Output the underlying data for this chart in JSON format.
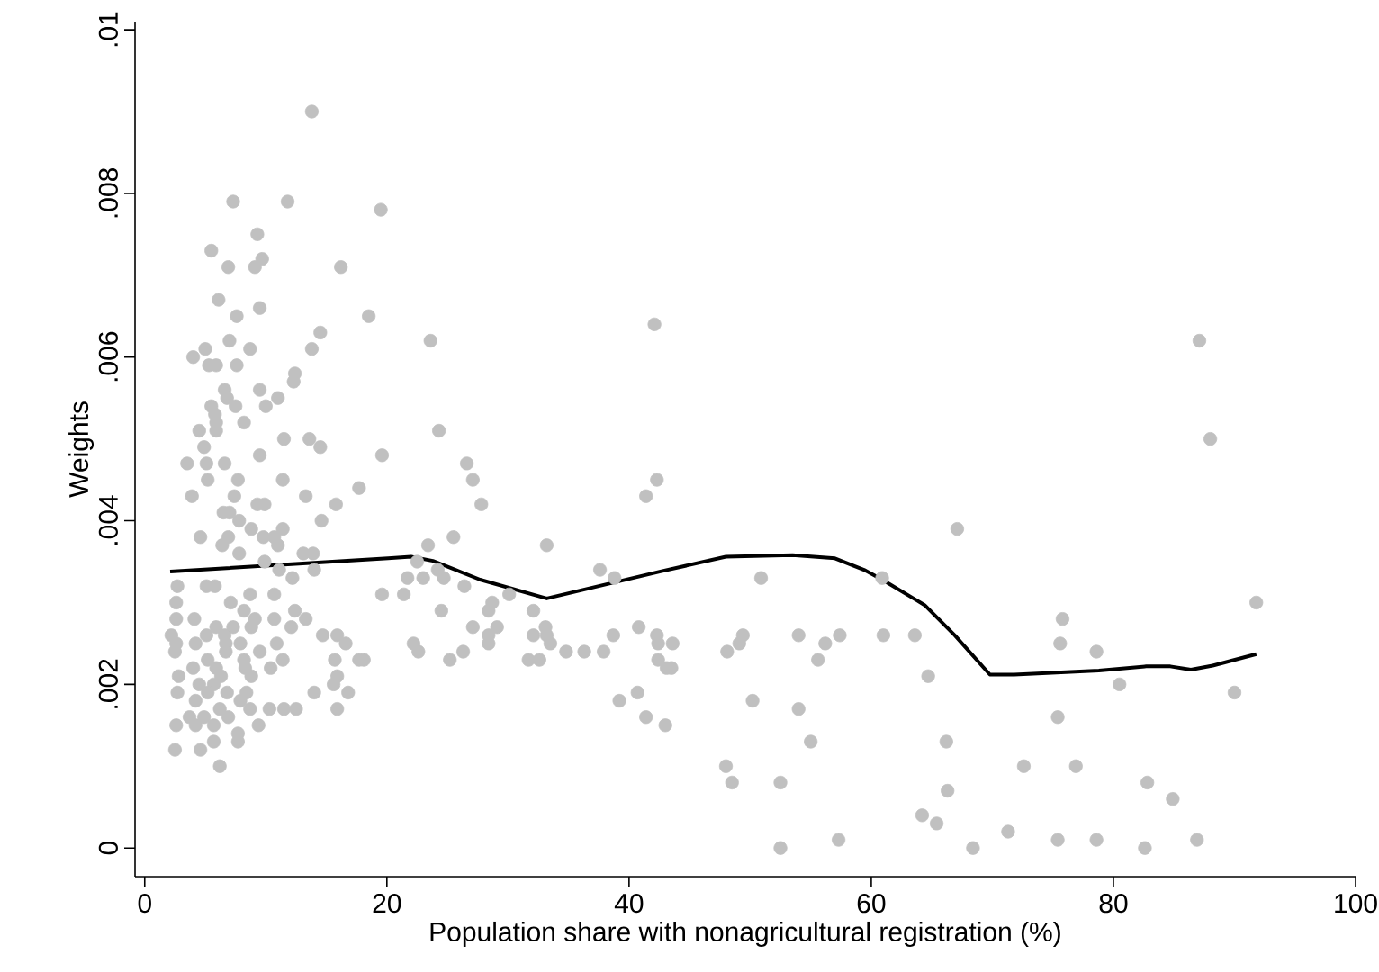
{
  "chart_data": {
    "type": "scatter",
    "xlabel": "Population share with nonagricultural registration (%)",
    "ylabel": "Weights",
    "xlim": [
      -0.8,
      100
    ],
    "ylim": [
      -0.00035,
      0.0101
    ],
    "xticks": [
      0,
      20,
      40,
      60,
      80,
      100
    ],
    "yticks": [
      {
        "value": 0,
        "label": "0"
      },
      {
        "value": 0.002,
        "label": ".002"
      },
      {
        "value": 0.004,
        "label": ".004"
      },
      {
        "value": 0.006,
        "label": ".006"
      },
      {
        "value": 0.008,
        "label": ".008"
      },
      {
        "value": 0.01,
        "label": ".01"
      }
    ],
    "grid": false,
    "series": [
      {
        "color": "#c0c0c0",
        "marker": "circle",
        "x": [
          13.8,
          7.3,
          11.8,
          19.5,
          9.3,
          5.5,
          6.9,
          9.7,
          9.1,
          16.2,
          6.1,
          7.6,
          9.5,
          18.5,
          5.0,
          4.0,
          5.3,
          5.9,
          7.0,
          8.7,
          7.6,
          14.5,
          13.8,
          12.4,
          12.3,
          6.6,
          6.8,
          9.5,
          11.0,
          10.0,
          5.5,
          5.8,
          7.5,
          5.9,
          4.5,
          5.9,
          8.2,
          11.5,
          4.9,
          13.6,
          14.5,
          9.5,
          3.5,
          5.1,
          6.6,
          19.6,
          5.2,
          7.7,
          11.4,
          3.9,
          7.4,
          13.3,
          17.7,
          9.9,
          9.3,
          6.5,
          7.0,
          15.8,
          14.6,
          7.8,
          8.8,
          11.4,
          4.6,
          6.9,
          9.8,
          10.7,
          11.0,
          6.4,
          7.8,
          13.1,
          13.9,
          9.9,
          11.1,
          12.2,
          14.0,
          19.6,
          2.7,
          5.1,
          5.8,
          7.1,
          8.7,
          10.7,
          2.6,
          8.2,
          12.4,
          2.6,
          4.1,
          5.9,
          7.3,
          9.1,
          10.7,
          13.3,
          2.2,
          5.1,
          6.6,
          8.8,
          12.1,
          14.7,
          15.9,
          2.6,
          4.2,
          6.7,
          7.9,
          10.9,
          16.6,
          2.5,
          5.2,
          6.7,
          8.2,
          9.5,
          11.4,
          15.7,
          4.0,
          5.9,
          8.3,
          17.7,
          18.1,
          2.8,
          6.3,
          10.4,
          15.9,
          4.5,
          5.7,
          8.8,
          15.6,
          2.7,
          5.2,
          6.8,
          8.4,
          14.0,
          16.8,
          4.2,
          6.2,
          7.9,
          10.3,
          11.5,
          12.5,
          15.9,
          3.7,
          4.9,
          6.9,
          8.7,
          2.6,
          4.2,
          5.7,
          7.7,
          9.4,
          4.6,
          5.7,
          7.7,
          2.5,
          6.2,
          23.6,
          42.1,
          24.3,
          26.6,
          27.1,
          27.8,
          42.3,
          41.4,
          25.5,
          23.4,
          33.2,
          22.5,
          24.2,
          37.6,
          38.8,
          50.9,
          21.7,
          23.0,
          24.7,
          26.4,
          21.4,
          30.1,
          28.7,
          28.4,
          24.5,
          32.1,
          27.1,
          29.1,
          28.4,
          28.4,
          33.1,
          32.1,
          33.2,
          33.5,
          22.2,
          22.6,
          26.3,
          25.2,
          31.7,
          32.6,
          34.8,
          36.3,
          37.9,
          38.7,
          40.8,
          42.3,
          43.6,
          42.4,
          42.4,
          43.1,
          43.5,
          48.1,
          49.4,
          49.1,
          54.0,
          55.6,
          56.2,
          57.4,
          39.2,
          40.7,
          41.4,
          43.0,
          50.2,
          54.0,
          55.0,
          48.0,
          48.5,
          52.5,
          52.5,
          57.3,
          87.1,
          88.0,
          67.1,
          91.8,
          60.9,
          61.0,
          63.6,
          75.8,
          75.6,
          78.6,
          80.5,
          90.0,
          64.7,
          75.4,
          66.2,
          72.6,
          76.9,
          66.3,
          82.8,
          84.9,
          64.2,
          65.4,
          68.4,
          71.3,
          75.4,
          78.6,
          82.6,
          86.9
        ],
        "values": [
          0.009,
          0.0079,
          0.0079,
          0.0078,
          0.0075,
          0.0073,
          0.0071,
          0.0072,
          0.0071,
          0.0071,
          0.0067,
          0.0065,
          0.0066,
          0.0065,
          0.0061,
          0.006,
          0.0059,
          0.0059,
          0.0062,
          0.0061,
          0.0059,
          0.0063,
          0.0061,
          0.0058,
          0.0057,
          0.0056,
          0.0055,
          0.0056,
          0.0055,
          0.0054,
          0.0054,
          0.0053,
          0.0054,
          0.0052,
          0.0051,
          0.0051,
          0.0052,
          0.005,
          0.0049,
          0.005,
          0.0049,
          0.0048,
          0.0047,
          0.0047,
          0.0047,
          0.0048,
          0.0045,
          0.0045,
          0.0045,
          0.0043,
          0.0043,
          0.0043,
          0.0044,
          0.0042,
          0.0042,
          0.0041,
          0.0041,
          0.0042,
          0.004,
          0.004,
          0.0039,
          0.0039,
          0.0038,
          0.0038,
          0.0038,
          0.0038,
          0.0037,
          0.0037,
          0.0036,
          0.0036,
          0.0036,
          0.0035,
          0.0034,
          0.0033,
          0.0034,
          0.0031,
          0.0032,
          0.0032,
          0.0032,
          0.003,
          0.0031,
          0.0031,
          0.003,
          0.0029,
          0.0029,
          0.0028,
          0.0028,
          0.0027,
          0.0027,
          0.0028,
          0.0028,
          0.0028,
          0.0026,
          0.0026,
          0.0026,
          0.0027,
          0.0027,
          0.0026,
          0.0026,
          0.0025,
          0.0025,
          0.0025,
          0.0025,
          0.0025,
          0.0025,
          0.0024,
          0.0023,
          0.0024,
          0.0023,
          0.0024,
          0.0023,
          0.0023,
          0.0022,
          0.0022,
          0.0022,
          0.0023,
          0.0023,
          0.0021,
          0.0021,
          0.0022,
          0.0021,
          0.002,
          0.002,
          0.0021,
          0.002,
          0.0019,
          0.0019,
          0.0019,
          0.0019,
          0.0019,
          0.0019,
          0.0018,
          0.0017,
          0.0018,
          0.0017,
          0.0017,
          0.0017,
          0.0017,
          0.0016,
          0.0016,
          0.0016,
          0.0017,
          0.0015,
          0.0015,
          0.0015,
          0.0014,
          0.0015,
          0.0012,
          0.0013,
          0.0013,
          0.0012,
          0.001,
          0.0062,
          0.0064,
          0.0051,
          0.0047,
          0.0045,
          0.0042,
          0.0045,
          0.0043,
          0.0038,
          0.0037,
          0.0037,
          0.0035,
          0.0034,
          0.0034,
          0.0033,
          0.0033,
          0.0033,
          0.0033,
          0.0033,
          0.0032,
          0.0031,
          0.0031,
          0.003,
          0.0029,
          0.0029,
          0.0029,
          0.0027,
          0.0027,
          0.0026,
          0.0025,
          0.0027,
          0.0026,
          0.0026,
          0.0025,
          0.0025,
          0.0024,
          0.0024,
          0.0023,
          0.0023,
          0.0023,
          0.0024,
          0.0024,
          0.0024,
          0.0026,
          0.0027,
          0.0026,
          0.0025,
          0.0025,
          0.0023,
          0.0022,
          0.0022,
          0.0024,
          0.0026,
          0.0025,
          0.0026,
          0.0023,
          0.0025,
          0.0026,
          0.0018,
          0.0019,
          0.0016,
          0.0015,
          0.0018,
          0.0017,
          0.0013,
          0.001,
          0.0008,
          0.0008,
          0.0,
          0.0001,
          0.0062,
          0.005,
          0.0039,
          0.003,
          0.0033,
          0.0026,
          0.0026,
          0.0028,
          0.0025,
          0.0024,
          0.002,
          0.0019,
          0.0021,
          0.0016,
          0.0013,
          0.001,
          0.001,
          0.0007,
          0.0008,
          0.0006,
          0.0004,
          0.0003,
          0.0,
          0.0002,
          0.0001,
          0.0001,
          0.0,
          0.0001
        ]
      },
      {
        "type": "line",
        "color": "#000000",
        "marker": "none",
        "line_style": "solid",
        "x": [
          2.1,
          20.1,
          22.0,
          23.8,
          27.7,
          33.2,
          42.6,
          48.0,
          53.5,
          57.0,
          59.4,
          60.9,
          64.4,
          66.9,
          69.8,
          71.8,
          78.8,
          82.7,
          84.7,
          86.4,
          88.2,
          91.8
        ],
        "values": [
          0.00338,
          0.00354,
          0.00356,
          0.00351,
          0.00328,
          0.00305,
          0.00338,
          0.00356,
          0.00358,
          0.00354,
          0.0034,
          0.00328,
          0.00297,
          0.0026,
          0.00212,
          0.00212,
          0.00217,
          0.00222,
          0.00222,
          0.00218,
          0.00223,
          0.00237
        ]
      }
    ]
  }
}
